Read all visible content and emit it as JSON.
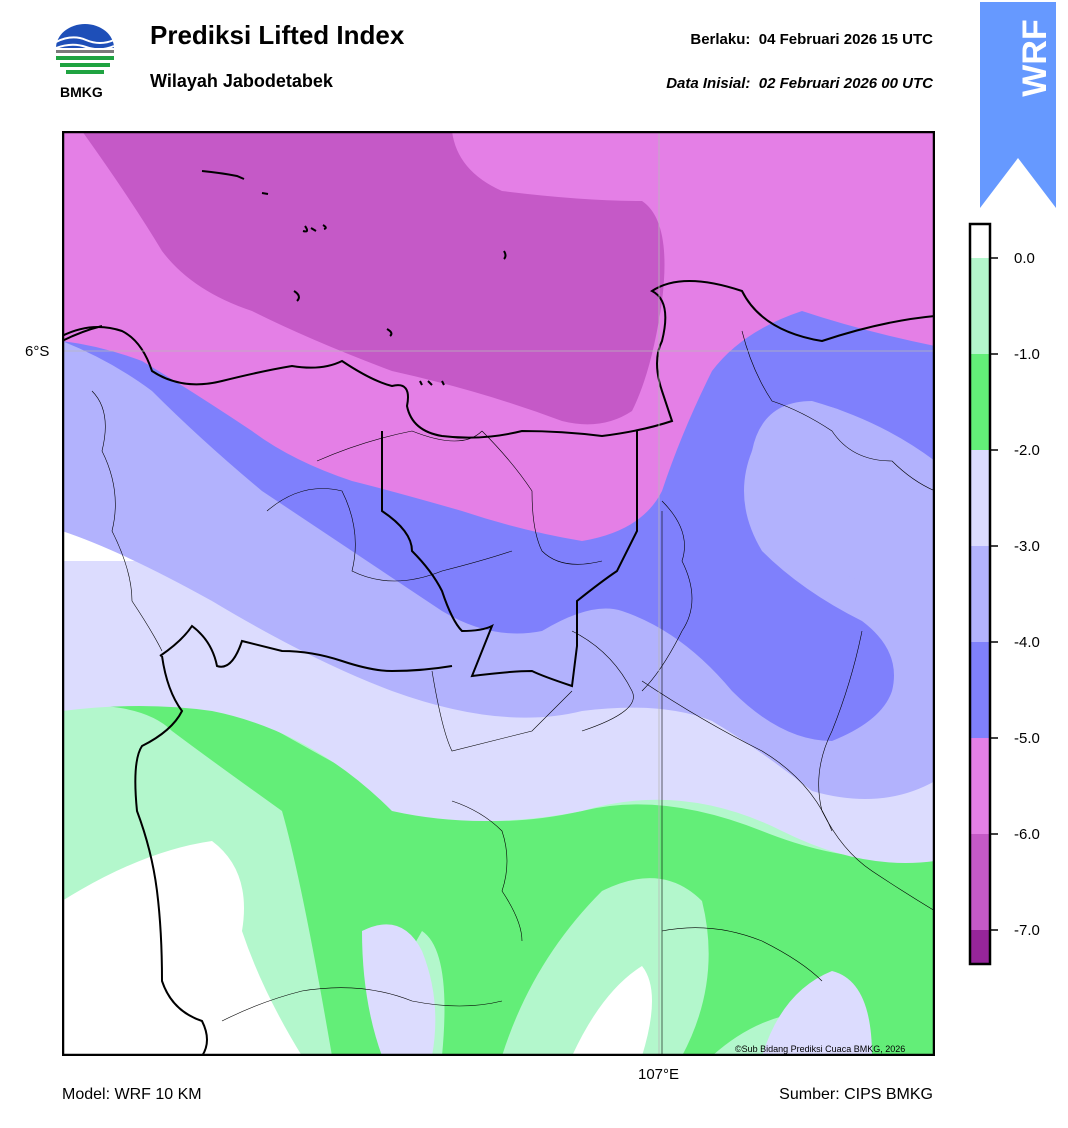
{
  "header": {
    "title": "Prediksi Lifted Index",
    "subtitle": "Wilayah Jabodetabek",
    "valid_label": "Berlaku:",
    "valid_value": "04 Februari 2026 15 UTC",
    "init_label": "Data Inisial:",
    "init_value": "02 Februari 2026 00 UTC"
  },
  "logo": {
    "text": "BMKG",
    "icon": "bmkg-logo"
  },
  "badge": {
    "text": "WRF",
    "color": "#6699ff"
  },
  "map": {
    "lat_tick": "6°S",
    "lon_tick": "107°E",
    "copyright": "©Sub Bidang Prediksi Cuaca BMKG, 2026"
  },
  "colorbar": {
    "ticks": [
      "0.0",
      "-1.0",
      "-2.0",
      "-3.0",
      "-4.0",
      "-5.0",
      "-6.0",
      "-7.0"
    ],
    "colors": {
      "above_0": "#ffffff",
      "0_to_-1": "#b3f7cc",
      "-1_to_-2": "#63ee78",
      "-2_to_-3": "#dcdcfe",
      "-3_to_-4": "#b2b2fd",
      "-4_to_-5": "#7f80fc",
      "-5_to_-6": "#e47fe6",
      "-6_to_-7": "#c559c7",
      "below_-7": "#96259b"
    }
  },
  "footer": {
    "model": "Model: WRF 10 KM",
    "source": "Sumber: CIPS BMKG"
  }
}
